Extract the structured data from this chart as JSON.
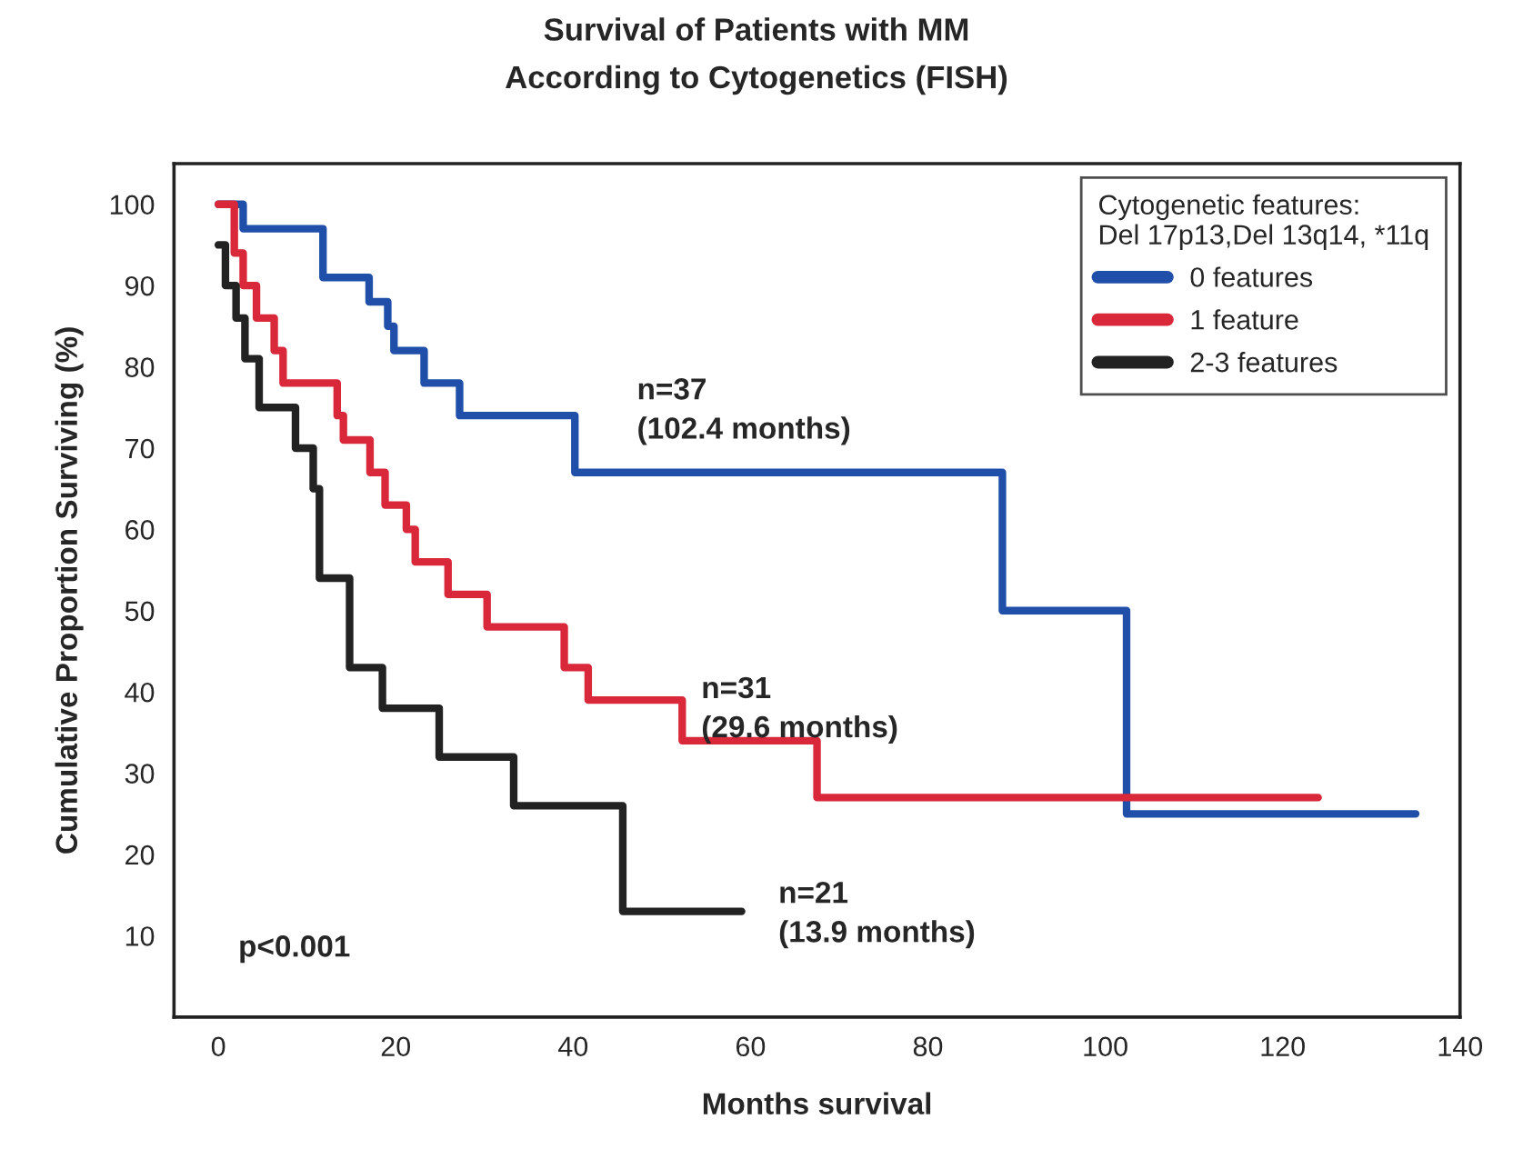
{
  "chart_data": {
    "type": "step",
    "title": "Survival of Patients with MM\nAccording to Cytogenetics (FISH)",
    "xlabel": "Months survival",
    "ylabel": "Cumulative Proportion Surviving (%)",
    "legend_title": "Cytogenetic features:\nDel 17p13,Del 13q14, *11q",
    "series": [
      {
        "name": "0 features",
        "color": "#1f4fa8",
        "x": [
          0,
          2.8,
          11.8,
          17,
          19.1,
          19.8,
          23.2,
          27.2,
          40.2,
          88.4,
          102.4,
          135
        ],
        "values": [
          100,
          97,
          91,
          88,
          85,
          82,
          78,
          74,
          67,
          50,
          25,
          25
        ]
      },
      {
        "name": "1 feature",
        "color": "#d9283a",
        "x": [
          0,
          1.8,
          2.8,
          4.3,
          6.3,
          7.3,
          13.4,
          14.1,
          17.1,
          18.8,
          21.2,
          22.2,
          25.9,
          30.3,
          39,
          41.7,
          52.3,
          67.5,
          124
        ],
        "values": [
          100,
          94,
          90,
          86,
          82,
          78,
          74,
          71,
          67,
          63,
          60,
          56,
          52,
          48,
          43,
          39,
          34,
          27,
          27
        ]
      },
      {
        "name": "2-3 features",
        "color": "#222222",
        "x": [
          0,
          0.8,
          2,
          3,
          4.6,
          8.7,
          10.7,
          11.4,
          14.8,
          18.5,
          24.9,
          33.3,
          45.6,
          59
        ],
        "values": [
          95,
          90,
          86,
          81,
          75,
          70,
          65,
          54,
          43,
          38,
          32,
          26,
          13,
          13
        ]
      }
    ],
    "annotations": [
      "n=37\n(102.4 months)",
      "n=31\n(29.6 months)",
      "n=21\n(13.9 months)",
      "p<0.001"
    ],
    "xlim": [
      -5,
      140
    ],
    "ylim": [
      0,
      105
    ],
    "xticks": [
      0,
      20,
      40,
      60,
      80,
      100,
      120,
      140
    ],
    "yticks": [
      10,
      20,
      30,
      40,
      50,
      60,
      70,
      80,
      90,
      100
    ],
    "legend": "top right",
    "grid": false
  }
}
